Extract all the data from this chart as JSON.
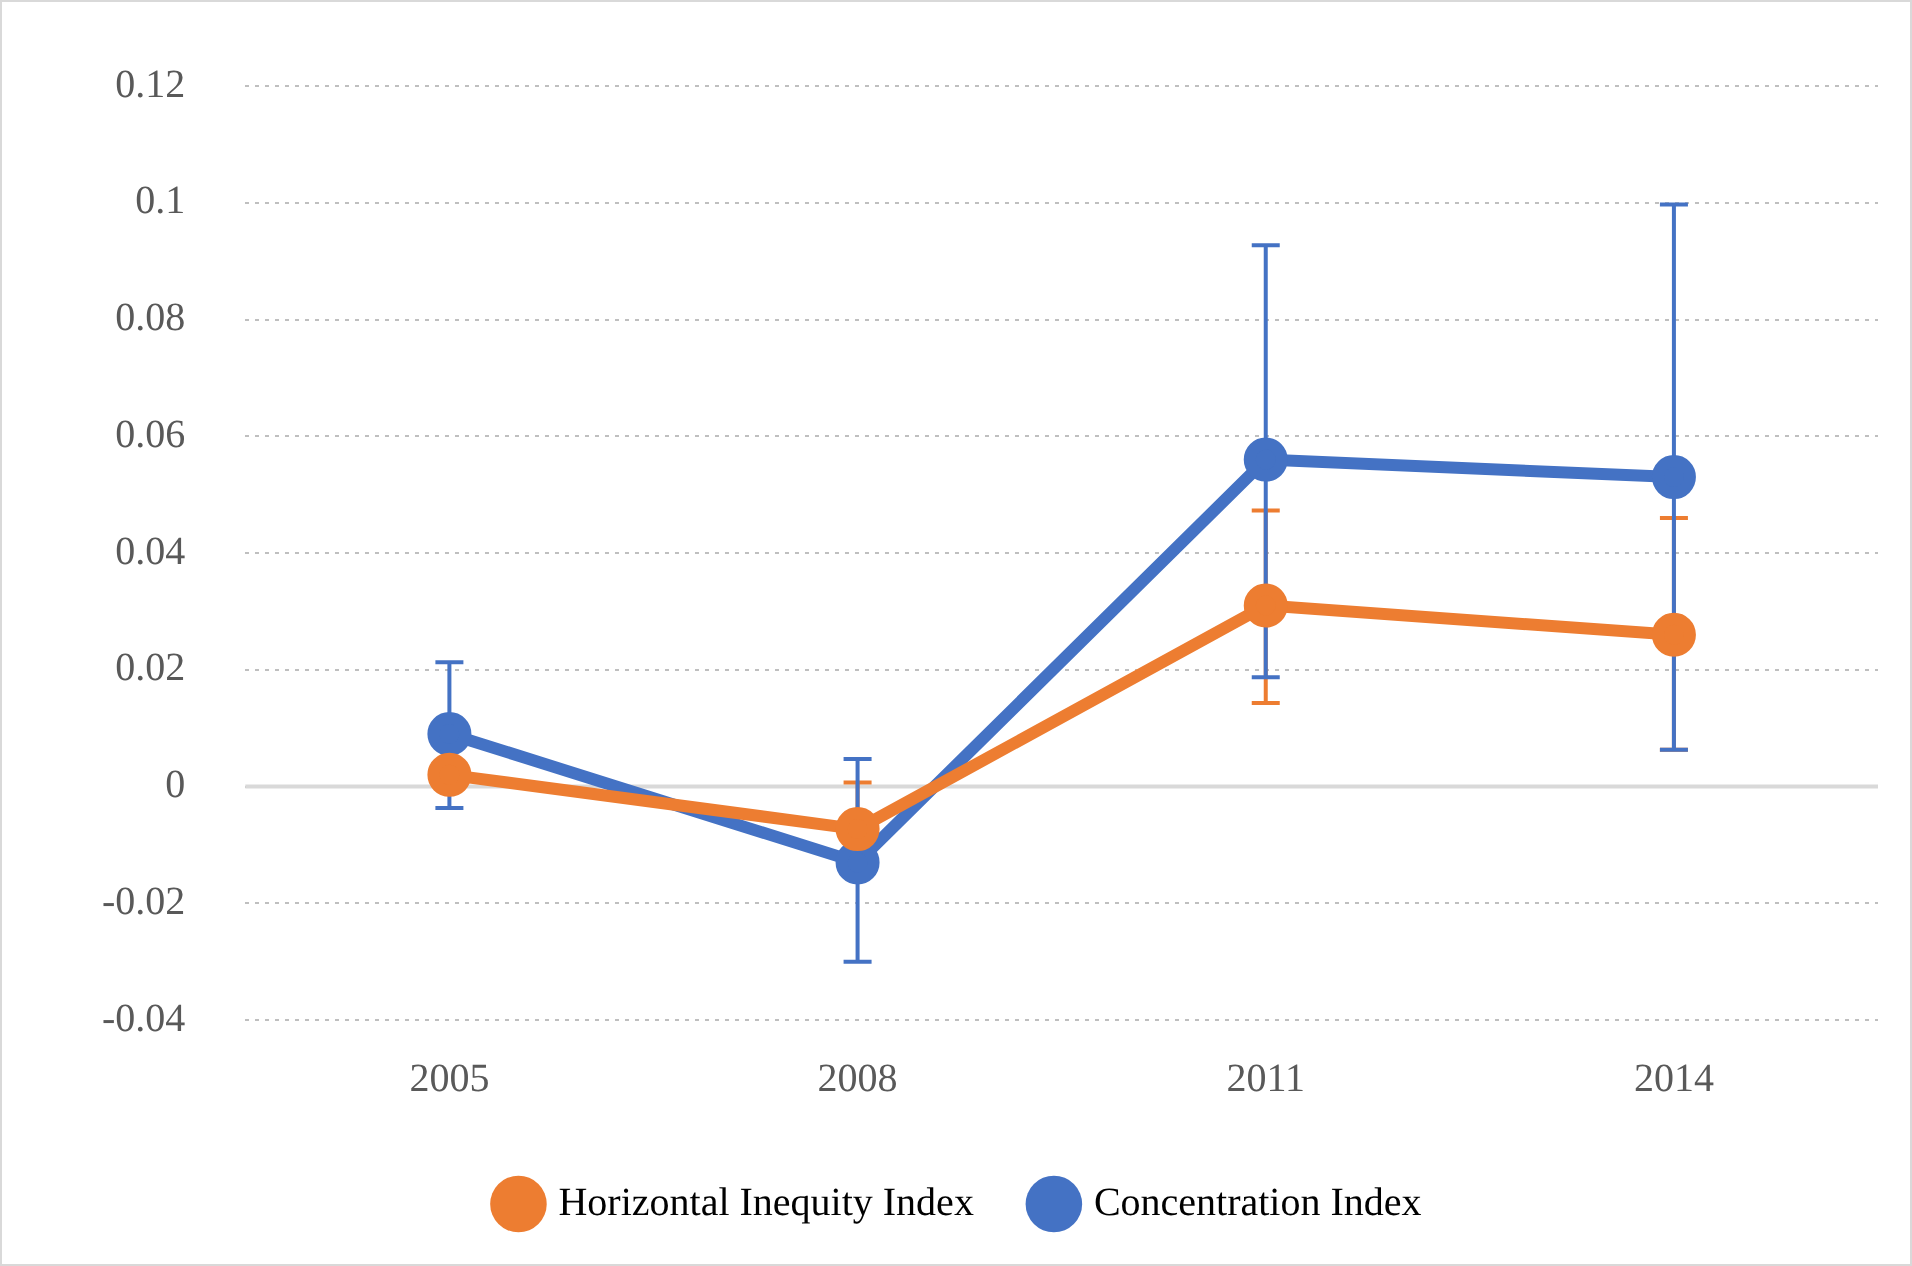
{
  "chart_data": {
    "type": "line",
    "categories": [
      "2005",
      "2008",
      "2011",
      "2014"
    ],
    "series": [
      {
        "name": "Horizontal Inequity Index",
        "color": "#ed7d31",
        "values": [
          0.002,
          -0.0073,
          0.031,
          0.026
        ],
        "errors": [
          null,
          [
            -0.0073,
            0.0007
          ],
          [
            0.0143,
            0.0473
          ],
          [
            0.0063,
            0.046
          ]
        ]
      },
      {
        "name": "Concentration Index",
        "color": "#4472c4",
        "values": [
          0.009,
          -0.013,
          0.056,
          0.053
        ],
        "errors": [
          [
            -0.0037,
            0.0213
          ],
          [
            -0.03,
            0.0047
          ],
          [
            0.0187,
            0.0927
          ],
          [
            0.0063,
            0.0997
          ]
        ]
      }
    ],
    "ylim": [
      -0.04,
      0.12
    ],
    "yticks": [
      -0.04,
      -0.02,
      0,
      0.02,
      0.04,
      0.06,
      0.08,
      0.1,
      0.12
    ],
    "grid": "y",
    "legend": "bottom",
    "marker": "circle",
    "line_style": "solid"
  }
}
